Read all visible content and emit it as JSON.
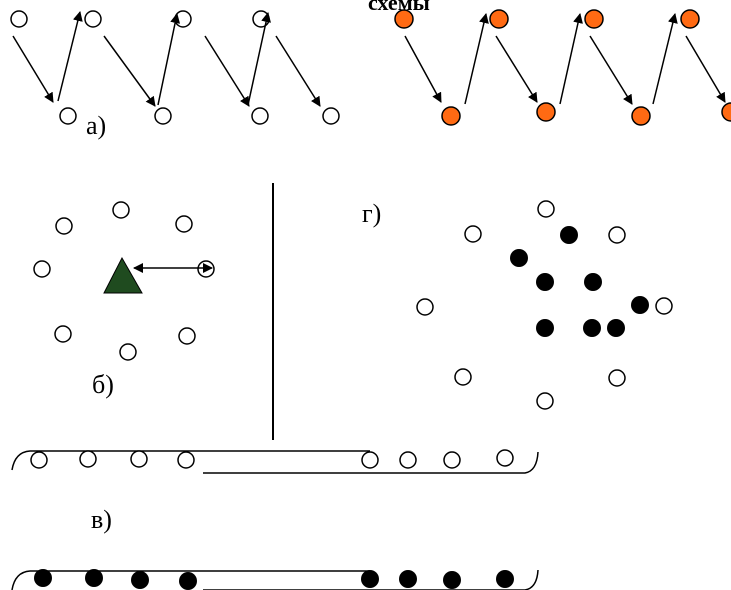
{
  "diagram": {
    "header_partial_text": "схемы",
    "labels": {
      "a": "а)",
      "b": "б)",
      "v": "в)",
      "g": "г)"
    },
    "colors": {
      "orange_fill": "#ff6a13",
      "dark_green_fill": "#1f4b1f",
      "black": "#000000",
      "white": "#ffffff"
    }
  }
}
